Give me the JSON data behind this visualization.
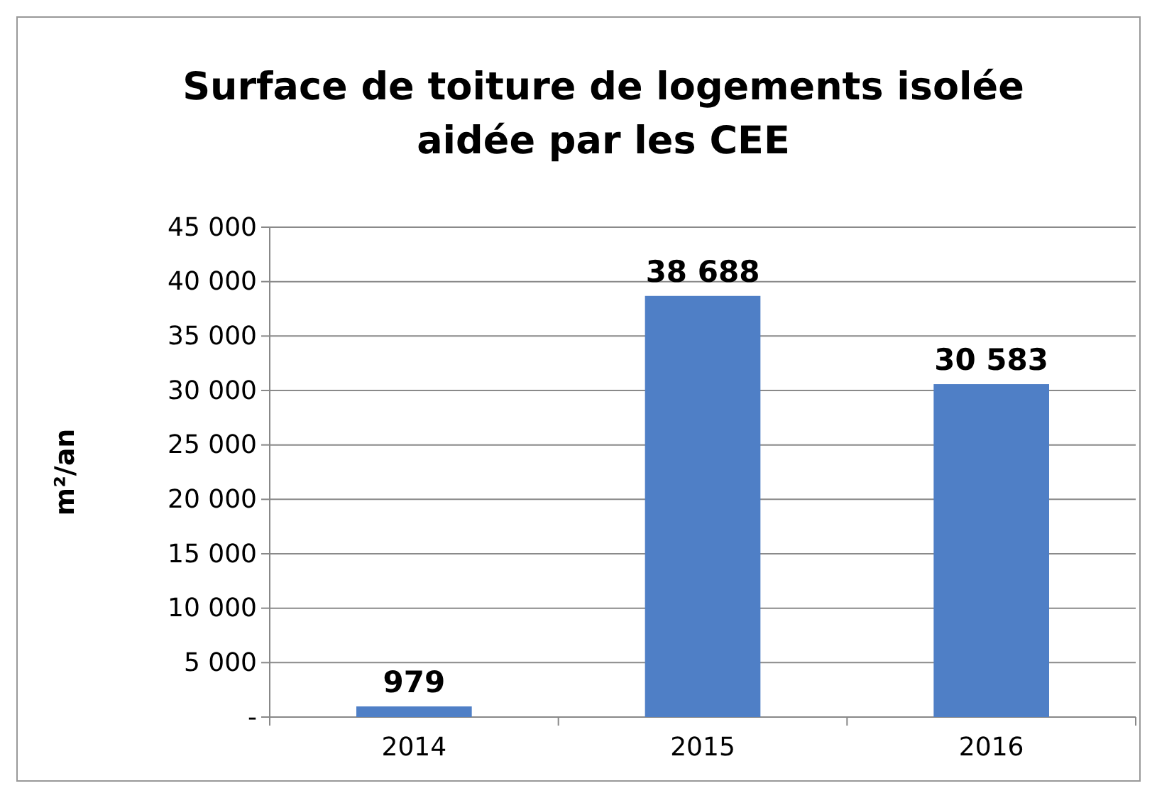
{
  "chart_data": {
    "type": "bar",
    "title": "Surface de toiture de logements isolée aidée par les CEE",
    "ylabel": "m²/an",
    "categories": [
      "2014",
      "2015",
      "2016"
    ],
    "values": [
      979,
      38688,
      30583
    ],
    "value_labels": [
      "979",
      "38 688",
      "30 583"
    ],
    "color": "#4f7fc6",
    "ylim": [
      0,
      45000
    ],
    "yticks": [
      {
        "value": 0,
        "label": "-"
      },
      {
        "value": 5000,
        "label": "5 000"
      },
      {
        "value": 10000,
        "label": "10 000"
      },
      {
        "value": 15000,
        "label": "15 000"
      },
      {
        "value": 20000,
        "label": "20 000"
      },
      {
        "value": 25000,
        "label": "25 000"
      },
      {
        "value": 30000,
        "label": "30 000"
      },
      {
        "value": 35000,
        "label": "35 000"
      },
      {
        "value": 40000,
        "label": "40 000"
      },
      {
        "value": 45000,
        "label": "45 000"
      }
    ],
    "grid": "y"
  }
}
